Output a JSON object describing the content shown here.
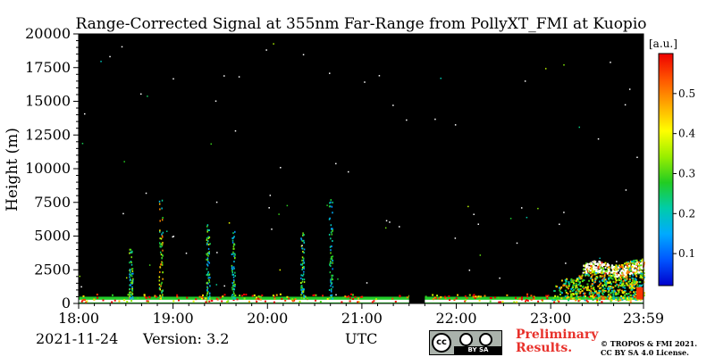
{
  "chart_data": {
    "type": "heatmap",
    "title": "Range-Corrected Signal at 355nm Far-Range from PollyXT_FMI at Kuopio",
    "ylabel": "Height (m)",
    "xlabel": "",
    "x_ticks": [
      "18:00",
      "19:00",
      "20:00",
      "21:00",
      "22:00",
      "23:00",
      "23:59"
    ],
    "x_range_hours": [
      18.0,
      23.983
    ],
    "y_ticks": [
      0,
      2500,
      5000,
      7500,
      10000,
      12500,
      15000,
      17500,
      20000
    ],
    "ylim": [
      0,
      20000
    ],
    "colorbar": {
      "label": "[a.u.]",
      "range": [
        0.02,
        0.6
      ],
      "ticks": [
        0.1,
        0.2,
        0.3,
        0.4,
        0.5
      ],
      "colormap": [
        "#0000cc",
        "#0055ff",
        "#00aaff",
        "#00ccaa",
        "#22cc22",
        "#99ee00",
        "#ffff00",
        "#ffaa00",
        "#ff5500",
        "#ee0000"
      ]
    },
    "background": "#000000",
    "data_gap": {
      "start": "21:30",
      "end": "21:40"
    },
    "features": [
      {
        "kind": "boundary-layer-band",
        "from": "18:00",
        "to": "23:59",
        "height_top": 500,
        "value": 0.55
      },
      {
        "kind": "aerosol-layer",
        "from": "23:00",
        "to": "23:59",
        "height_bottom": 300,
        "height_top": 3500,
        "value": 0.4
      },
      {
        "kind": "cloud-layer",
        "from": "23:20",
        "to": "23:59",
        "height_bottom": 2200,
        "height_top": 3000,
        "value": 0.6
      },
      {
        "kind": "virga-streak",
        "time": "18:52",
        "height_top": 8500,
        "value": 0.35
      },
      {
        "kind": "virga-streak",
        "time": "19:22",
        "height_top": 6000,
        "value": 0.25
      },
      {
        "kind": "virga-streak",
        "time": "19:38",
        "height_top": 5500,
        "value": 0.22
      },
      {
        "kind": "virga-streak",
        "time": "20:22",
        "height_top": 5500,
        "value": 0.25
      },
      {
        "kind": "virga-streak",
        "time": "20:40",
        "height_top": 8000,
        "value": 0.22
      },
      {
        "kind": "virga-streak",
        "time": "18:33",
        "height_top": 4500,
        "value": 0.25
      }
    ]
  },
  "footer": {
    "date": "2021-11-24",
    "version": "Version: 3.2",
    "x_unit": "UTC",
    "license_strip": "BY   SA",
    "license_cc": "cc",
    "preliminary_line1": "Preliminary",
    "preliminary_line2": "Results.",
    "copyright_line1": "© TROPOS & FMI 2021.",
    "copyright_line2": "CC BY SA 4.0 License."
  }
}
